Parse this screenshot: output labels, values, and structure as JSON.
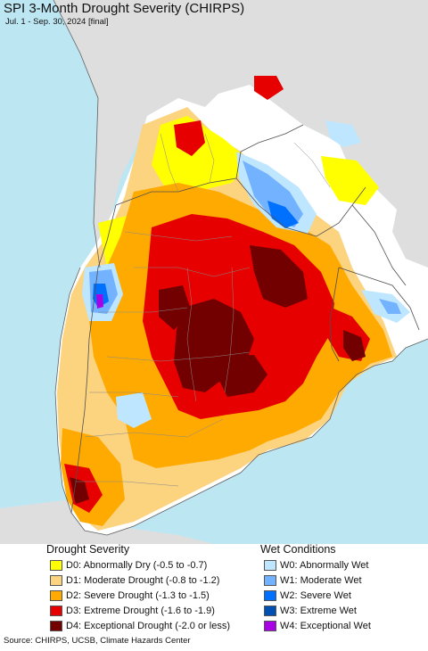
{
  "header": {
    "title": "SPI 3-Month Drought Severity (CHIRPS)",
    "subtitle": "Jul. 1 - Sep. 30, 2024 [final]"
  },
  "colors": {
    "ocean": "#bde6f3",
    "land": "#ffffff",
    "outside_region": "#dedede",
    "borders": "#606060"
  },
  "legend": {
    "drought": {
      "heading": "Drought Severity",
      "items": [
        {
          "label": "D0: Abnormally Dry (-0.5 to -0.7)",
          "color": "#ffff00"
        },
        {
          "label": "D1: Moderate Drought (-0.8 to -1.2)",
          "color": "#fcd37f"
        },
        {
          "label": "D2: Severe Drought (-1.3 to -1.5)",
          "color": "#ffaa00"
        },
        {
          "label": "D3: Extreme Drought (-1.6 to -1.9)",
          "color": "#e60000"
        },
        {
          "label": "D4: Exceptional Drought (-2.0 or less)",
          "color": "#730000"
        }
      ]
    },
    "wet": {
      "heading": "Wet Conditions",
      "items": [
        {
          "label": "W0: Abnormally Wet",
          "color": "#bfe6ff"
        },
        {
          "label": "W1: Moderate Wet",
          "color": "#73b2ff"
        },
        {
          "label": "W2: Severe Wet",
          "color": "#0070ff"
        },
        {
          "label": "W3: Extreme Wet",
          "color": "#0050b4"
        },
        {
          "label": "W4: Exceptional Wet",
          "color": "#a900e6"
        }
      ]
    }
  },
  "footer": {
    "source": "Source: CHIRPS, UCSB, Climate Hazards Center"
  }
}
